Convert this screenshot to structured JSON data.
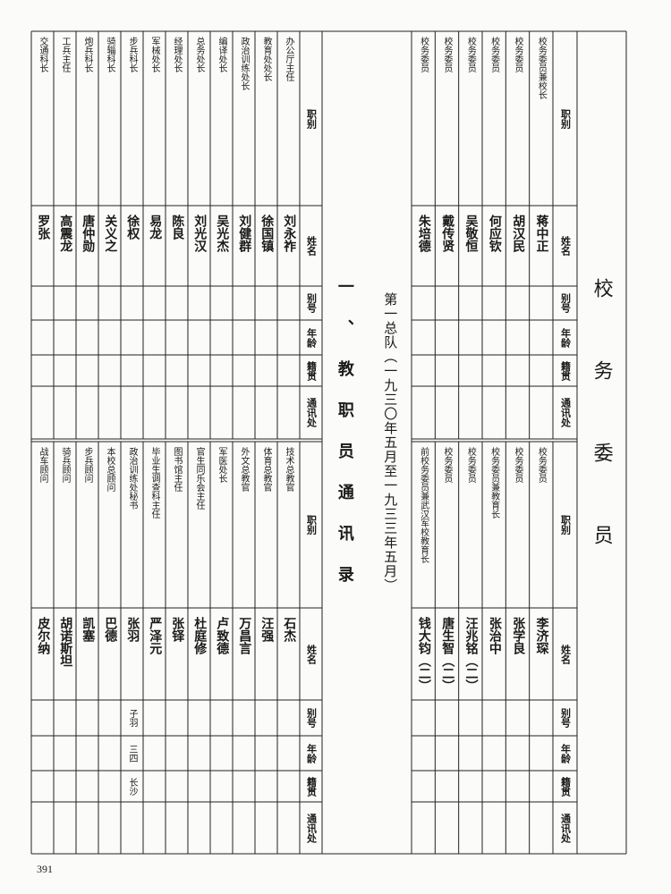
{
  "header": {
    "title": "校务委员",
    "section": "一、教职员通讯录",
    "subtitle": "第一总队（一九三〇年五月至一九三三年五月）"
  },
  "columns": [
    "职别",
    "姓名",
    "别号",
    "年龄",
    "籍贯",
    "通讯处"
  ],
  "tables": [
    {
      "rows": [
        {
          "position": "校务委员兼校长",
          "name": "蒋中正"
        },
        {
          "position": "校务委员",
          "name": "胡汉民"
        },
        {
          "position": "校务委员",
          "name": "何应钦"
        },
        {
          "position": "校务委员",
          "name": "吴敬恒"
        },
        {
          "position": "校务委员",
          "name": "戴传贤"
        },
        {
          "position": "校务委员",
          "name": "朱培德"
        }
      ]
    },
    {
      "rows": [
        {
          "position": "校务委员",
          "name": "李济琛"
        },
        {
          "position": "校务委员",
          "name": "张学良"
        },
        {
          "position": "校务委员兼教育长",
          "name": "张治中"
        },
        {
          "position": "校务委员",
          "name": "汪兆铭（二）"
        },
        {
          "position": "校务委员",
          "name": "唐生智（二）"
        },
        {
          "position": "前校务委员兼武汉军校教育长",
          "name": "钱大钧（二）"
        }
      ]
    },
    {
      "rows": [
        {
          "position": "办公厅主任",
          "name": "刘永祚"
        },
        {
          "position": "教育处处长",
          "name": "徐国镇"
        },
        {
          "position": "政治训练处长",
          "name": "刘健群"
        },
        {
          "position": "编译处长",
          "name": "吴光杰"
        },
        {
          "position": "总务处长",
          "name": "刘光汉"
        },
        {
          "position": "经理处长",
          "name": "陈良"
        },
        {
          "position": "军械处长",
          "name": "易龙"
        },
        {
          "position": "步兵科长",
          "name": "徐权"
        },
        {
          "position": "骑辎科长",
          "name": "关义之"
        },
        {
          "position": "炮兵科长",
          "name": "唐仲勋"
        },
        {
          "position": "工兵主任",
          "name": "高震龙"
        },
        {
          "position": "交通科长",
          "name": "罗张"
        }
      ]
    },
    {
      "rows": [
        {
          "position": "技术总教官",
          "name": "石杰"
        },
        {
          "position": "体育总教官",
          "name": "汪强"
        },
        {
          "position": "外文总教官",
          "name": "万昌言"
        },
        {
          "position": "军医处长",
          "name": "卢致德"
        },
        {
          "position": "官生同乐会主任",
          "name": "杜庭修"
        },
        {
          "position": "图书馆主任",
          "name": "张铎"
        },
        {
          "position": "毕业生调查科主任",
          "name": "严泽元"
        },
        {
          "position": "政治训练处秘书",
          "name": "张羽",
          "alias": "子羽",
          "age": "三四",
          "native_place": "长沙"
        },
        {
          "position": "本校总顾问",
          "name": "巴德"
        },
        {
          "position": "步兵顾问",
          "name": "凯塞"
        },
        {
          "position": "骑兵顾问",
          "name": "胡诺斯坦"
        },
        {
          "position": "战车顾问",
          "name": "皮尔纳"
        }
      ]
    }
  ],
  "page_number": "391"
}
